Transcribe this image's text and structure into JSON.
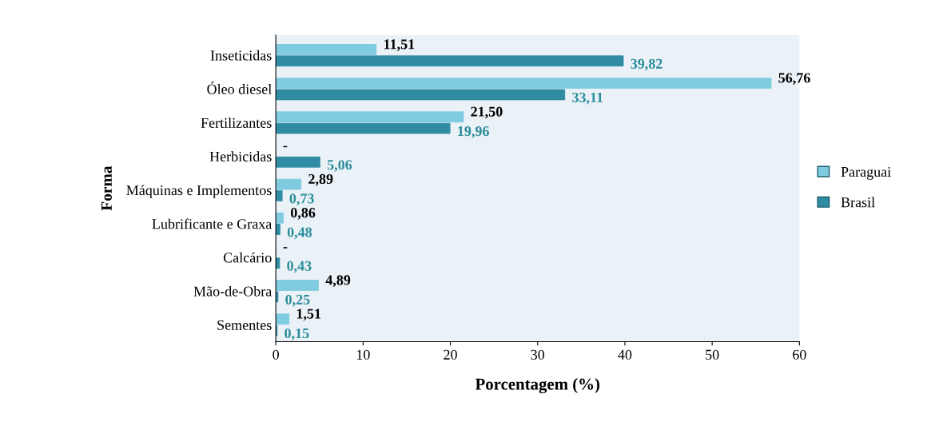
{
  "chart_data": {
    "type": "bar",
    "orientation": "horizontal",
    "xlabel": "Porcentagem (%)",
    "ylabel": "Forma",
    "categories": [
      "Inseticidas",
      "Óleo diesel",
      "Fertilizantes",
      "Herbicidas",
      "Máquinas e Implementos",
      "Lubrificante e Graxa",
      "Calcário",
      "Mão-de-Obra",
      "Sementes"
    ],
    "series": [
      {
        "name": "Paraguai",
        "color": "#7fcbe0",
        "values": [
          11.51,
          56.76,
          21.5,
          0,
          2.89,
          0.86,
          0,
          4.89,
          1.51
        ],
        "value_labels": [
          "11,51",
          "56,76",
          "21,50",
          "-",
          "2,89",
          "0,86",
          "-",
          "4,89",
          "1,51"
        ]
      },
      {
        "name": "Brasil",
        "color": "#2f8ca3",
        "values": [
          39.82,
          33.11,
          19.96,
          5.06,
          0.73,
          0.48,
          0.43,
          0.25,
          0.15
        ],
        "value_labels": [
          "39,82",
          "33,11",
          "19,96",
          "5,06",
          "0,73",
          "0,48",
          "0,43",
          "0,25",
          "0,15"
        ]
      }
    ],
    "xlim": [
      0,
      60
    ],
    "xticks": [
      0,
      10,
      20,
      30,
      40,
      50,
      60
    ],
    "grid": false,
    "legend": "right"
  }
}
